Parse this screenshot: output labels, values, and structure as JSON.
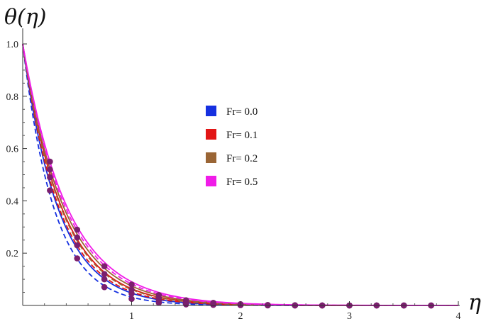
{
  "chart_data": {
    "type": "line",
    "title": "",
    "xlabel": "η",
    "ylabel": "θ(η)",
    "xlim": [
      0,
      4
    ],
    "ylim": [
      0,
      1.0
    ],
    "x_ticks": [
      1,
      2,
      3,
      4
    ],
    "y_ticks": [
      0.2,
      0.4,
      0.6,
      0.8,
      1.0
    ],
    "x_tick_labels": [
      "1",
      "2",
      "3",
      "4"
    ],
    "y_tick_labels": [
      "0.2",
      "0.4",
      "0.6",
      "0.8",
      "1.0"
    ],
    "grid": false,
    "legend_position": "center",
    "series": [
      {
        "name": "Fr= 0.0",
        "color": "#1530e0",
        "solid_decay": 3.05,
        "dashed_decay": 3.45,
        "points": {
          "x": [
            0.25,
            0.5,
            0.75,
            1.0,
            1.25,
            1.5,
            1.75,
            2.0,
            2.25,
            2.5,
            2.75,
            3.0,
            3.25,
            3.5,
            3.75
          ],
          "y": [
            0.44,
            0.18,
            0.07,
            0.025,
            0.01,
            0.004,
            0.002,
            0.001,
            0.0,
            0.0,
            0.0,
            0.0,
            0.0,
            0.0,
            0.0
          ]
        }
      },
      {
        "name": "Fr= 0.1",
        "color": "#e21515",
        "solid_decay": 2.75,
        "dashed_decay": 2.95,
        "points": {
          "x": [
            0.25,
            0.5,
            0.75,
            1.0,
            1.25,
            1.5,
            1.75,
            2.0,
            2.25,
            2.5,
            2.75,
            3.0,
            3.25,
            3.5,
            3.75
          ],
          "y": [
            0.49,
            0.23,
            0.1,
            0.045,
            0.02,
            0.009,
            0.004,
            0.002,
            0.001,
            0.0,
            0.0,
            0.0,
            0.0,
            0.0,
            0.0
          ]
        }
      },
      {
        "name": "Fr= 0.2",
        "color": "#9a6535",
        "solid_decay": 2.6,
        "dashed_decay": 2.8,
        "points": {
          "x": [
            0.25,
            0.5,
            0.75,
            1.0,
            1.25,
            1.5,
            1.75,
            2.0,
            2.25,
            2.5,
            2.75,
            3.0,
            3.25,
            3.5,
            3.75
          ],
          "y": [
            0.52,
            0.26,
            0.12,
            0.06,
            0.028,
            0.013,
            0.006,
            0.003,
            0.001,
            0.0,
            0.0,
            0.0,
            0.0,
            0.0,
            0.0
          ]
        }
      },
      {
        "name": "Fr= 0.5",
        "color": "#f01ce8",
        "solid_decay": 2.4,
        "dashed_decay": 2.5,
        "points": {
          "x": [
            0.25,
            0.5,
            0.75,
            1.0,
            1.25,
            1.5,
            1.75,
            2.0,
            2.25,
            2.5,
            2.75,
            3.0,
            3.25,
            3.5,
            3.75
          ],
          "y": [
            0.55,
            0.29,
            0.15,
            0.08,
            0.04,
            0.02,
            0.01,
            0.005,
            0.002,
            0.001,
            0.0,
            0.0,
            0.0,
            0.0,
            0.0
          ]
        }
      }
    ],
    "marker_color": "#7b1f6e"
  }
}
